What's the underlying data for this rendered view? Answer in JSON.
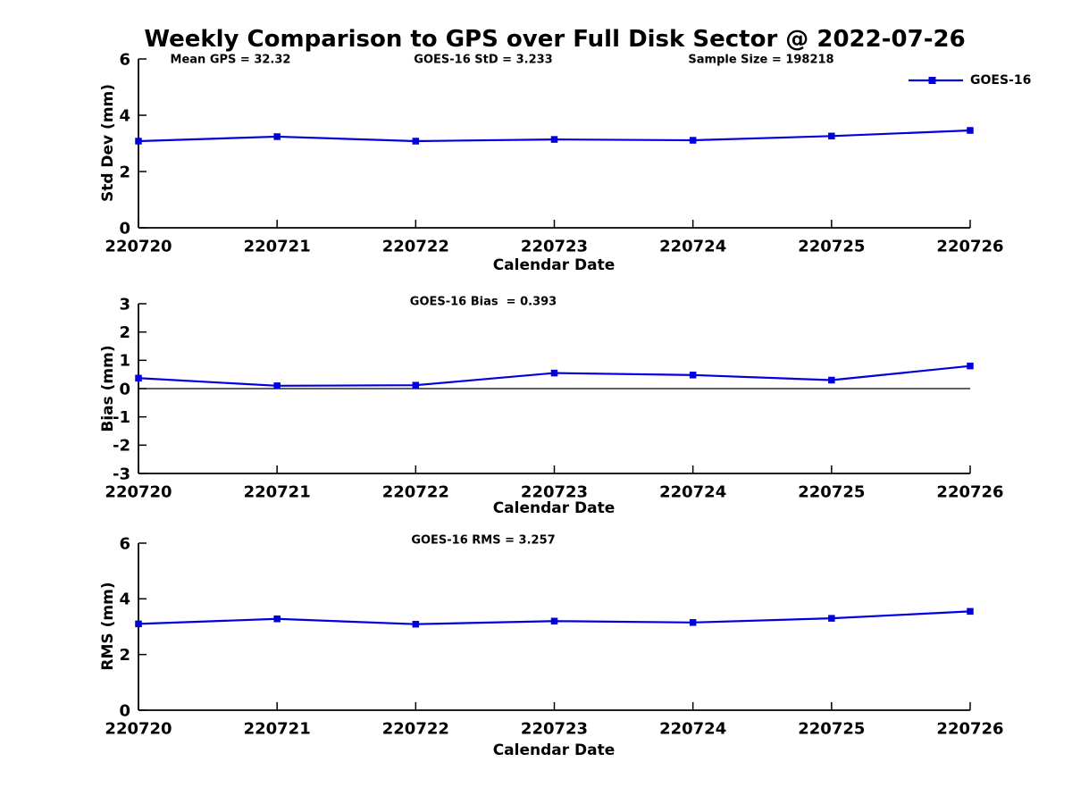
{
  "colors": {
    "series": "#0000DD",
    "axis": "#000000",
    "background": "#FFFFFF"
  },
  "legend": {
    "label": "GOES-16",
    "position": "upper right"
  },
  "chart_data": [
    {
      "type": "line",
      "title": "Weekly Comparison to GPS over Full Disk Sector @ 2022-07-26",
      "xlabel": "Calendar Date",
      "ylabel": "Std Dev (mm)",
      "categories": [
        "220720",
        "220721",
        "220722",
        "220723",
        "220724",
        "220725",
        "220726"
      ],
      "series": [
        {
          "name": "GOES-16",
          "values": [
            3.08,
            3.24,
            3.08,
            3.14,
            3.11,
            3.26,
            3.46
          ]
        }
      ],
      "ylim": [
        0,
        6
      ],
      "yticks": [
        0,
        2,
        4,
        6
      ],
      "grid": false,
      "zero_line": false,
      "annotations": [
        "Mean GPS = 32.32",
        "GOES-16 StD = 3.233",
        "Sample Size = 198218"
      ]
    },
    {
      "type": "line",
      "title": "",
      "xlabel": "Calendar Date",
      "ylabel": "Bias (mm)",
      "categories": [
        "220720",
        "220721",
        "220722",
        "220723",
        "220724",
        "220725",
        "220726"
      ],
      "series": [
        {
          "name": "GOES-16",
          "values": [
            0.37,
            0.1,
            0.12,
            0.55,
            0.48,
            0.3,
            0.8
          ]
        }
      ],
      "ylim": [
        -3,
        3
      ],
      "yticks": [
        -3,
        -2,
        -1,
        0,
        1,
        2,
        3
      ],
      "grid": false,
      "zero_line": true,
      "annotations": [
        "GOES-16 Bias  = 0.393"
      ]
    },
    {
      "type": "line",
      "title": "",
      "xlabel": "Calendar Date",
      "ylabel": "RMS (mm)",
      "categories": [
        "220720",
        "220721",
        "220722",
        "220723",
        "220724",
        "220725",
        "220726"
      ],
      "series": [
        {
          "name": "GOES-16",
          "values": [
            3.1,
            3.28,
            3.09,
            3.2,
            3.15,
            3.3,
            3.55
          ]
        }
      ],
      "ylim": [
        0,
        6
      ],
      "yticks": [
        0,
        2,
        4,
        6
      ],
      "grid": false,
      "zero_line": false,
      "annotations": [
        "GOES-16 RMS = 3.257"
      ]
    }
  ]
}
